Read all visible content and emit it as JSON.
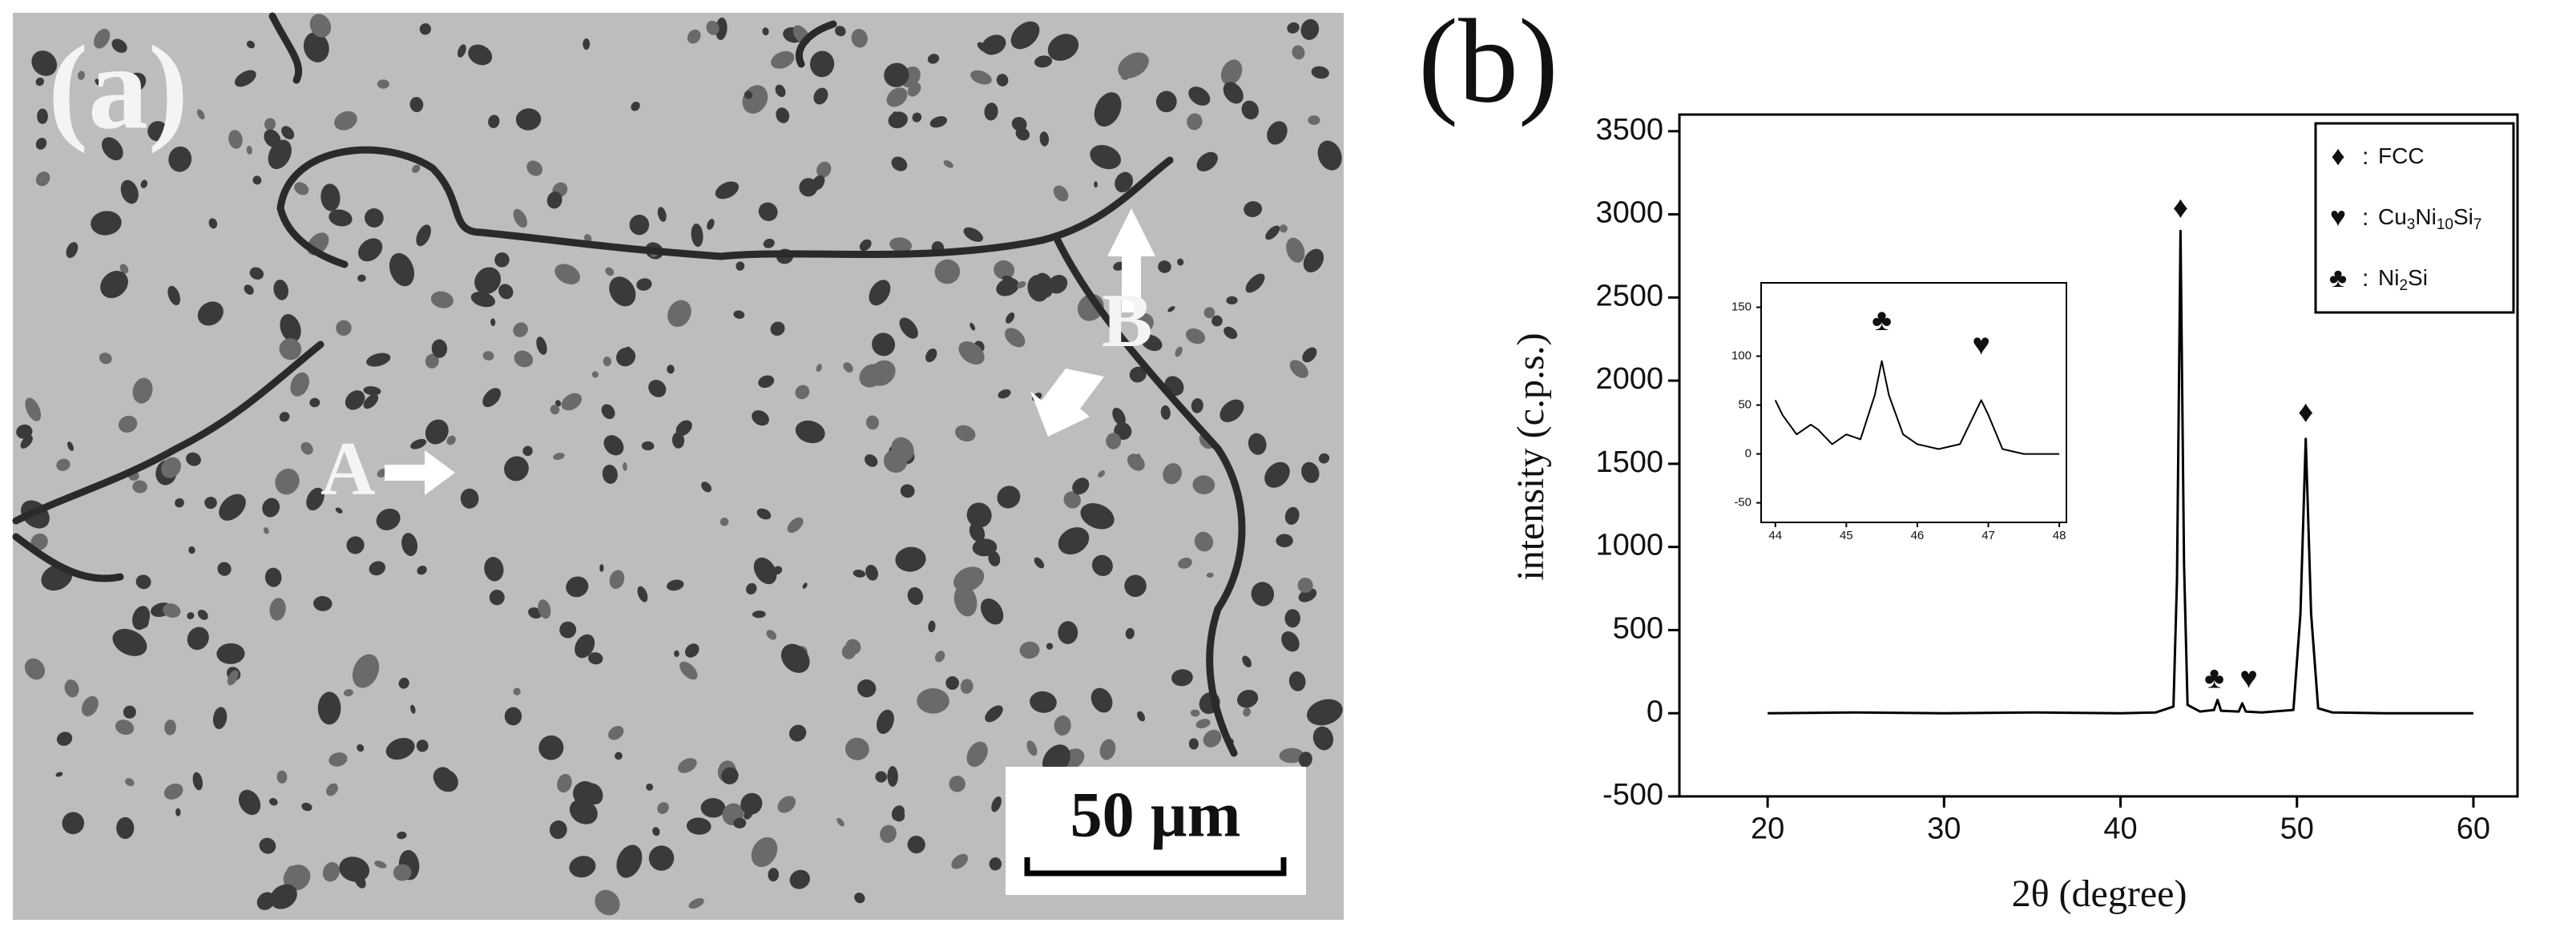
{
  "panel_a": {
    "label": "(a)",
    "annotations": [
      "A",
      "B"
    ],
    "scale_bar": "50 µm"
  },
  "chart_data": {
    "type": "line",
    "panel_label": "(b)",
    "x_label": "2θ (degree)",
    "y_label": "intensity (c.p.s.)",
    "xlim": [
      15,
      62.5
    ],
    "ylim": [
      -500,
      3600
    ],
    "xticks": [
      20,
      30,
      40,
      50,
      60
    ],
    "yticks": [
      -500,
      0,
      500,
      1000,
      1500,
      2000,
      2500,
      3000,
      3500
    ],
    "color": "#000000",
    "x": [
      20,
      25,
      30,
      35,
      40,
      42,
      43,
      43.2,
      43.4,
      43.6,
      43.8,
      44.5,
      45.3,
      45.5,
      45.7,
      46.7,
      46.9,
      47.1,
      48,
      49.8,
      50.2,
      50.5,
      50.8,
      51.2,
      52,
      55,
      60
    ],
    "values": [
      0,
      5,
      0,
      5,
      0,
      5,
      40,
      800,
      2900,
      900,
      50,
      10,
      20,
      80,
      15,
      10,
      60,
      10,
      5,
      20,
      600,
      1650,
      600,
      30,
      5,
      0,
      0
    ],
    "annotations": [
      "♦",
      "♦",
      "♣",
      "♥"
    ],
    "legend": [
      {
        "symbol": "♦",
        "sep": ":",
        "label": [
          "FCC"
        ]
      },
      {
        "symbol": "♥",
        "sep": ":",
        "label": [
          "Cu",
          "3",
          "Ni",
          "10",
          "Si",
          "7"
        ]
      },
      {
        "symbol": "♣",
        "sep": ":",
        "label": [
          "Ni",
          "2",
          "Si"
        ]
      }
    ],
    "inset": {
      "xlim": [
        43.8,
        48.1
      ],
      "ylim": [
        -70,
        175
      ],
      "xticks": [
        44,
        45,
        46,
        47,
        48
      ],
      "yticks": [
        -50,
        0,
        50,
        100,
        150
      ],
      "x": [
        44,
        44.1,
        44.3,
        44.5,
        44.6,
        44.8,
        45,
        45.2,
        45.4,
        45.5,
        45.6,
        45.8,
        46,
        46.3,
        46.6,
        46.8,
        46.9,
        47,
        47.2,
        47.5,
        48
      ],
      "values": [
        55,
        40,
        20,
        30,
        25,
        10,
        20,
        15,
        60,
        95,
        60,
        20,
        10,
        5,
        10,
        40,
        55,
        40,
        5,
        0,
        0
      ],
      "annotations": [
        "♣",
        "♥"
      ]
    }
  }
}
